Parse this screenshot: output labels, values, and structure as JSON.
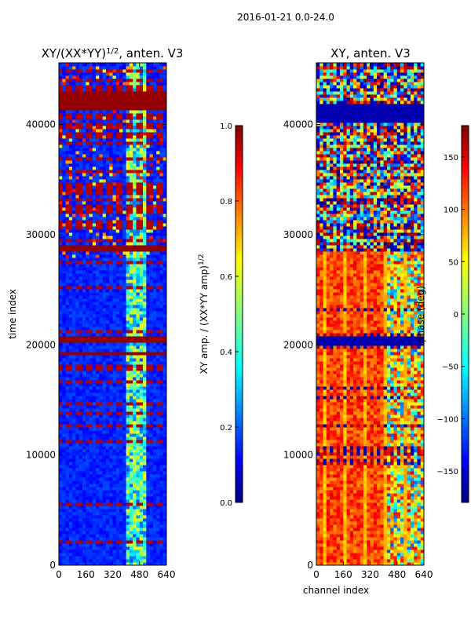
{
  "figure": {
    "suptitle": "2016-01-21 0.0-24.0"
  },
  "chart_data": [
    {
      "type": "heatmap",
      "title_main": "XY/(XX*YY)",
      "title_sup": "1/2",
      "title_tail": ", anten. V3",
      "xlabel": "",
      "ylabel": "time index",
      "x_ticks": [
        0,
        160,
        320,
        480,
        640
      ],
      "y_ticks": [
        0,
        10000,
        20000,
        30000,
        40000
      ],
      "xlim": [
        0,
        640
      ],
      "ylim": [
        0,
        45600
      ],
      "colormap": "jet",
      "colorbar": {
        "label_main": "XY amp. / (XX*YY amp)",
        "label_sup": "1/2",
        "ticks": [
          "0.0",
          "0.2",
          "0.4",
          "0.6",
          "0.8",
          "1.0"
        ],
        "range": [
          0.0,
          1.0
        ]
      }
    },
    {
      "type": "heatmap",
      "title": "XY, anten. V3",
      "xlabel": "channel index",
      "ylabel": "",
      "x_ticks": [
        0,
        160,
        320,
        480,
        640
      ],
      "y_ticks": [
        0,
        10000,
        20000,
        30000,
        40000
      ],
      "xlim": [
        0,
        640
      ],
      "ylim": [
        0,
        45600
      ],
      "colormap": "jet",
      "colorbar": {
        "label": "phase (deg)",
        "ticks": [
          "150",
          "100",
          "50",
          "0",
          "−50",
          "−100",
          "−150"
        ],
        "tick_values": [
          150,
          100,
          50,
          0,
          -50,
          -100,
          -150
        ],
        "range": [
          -180,
          180
        ]
      }
    }
  ],
  "colors": {
    "jet": [
      "#00007f",
      "#0000ff",
      "#007fff",
      "#00ffff",
      "#7fff7f",
      "#ffff00",
      "#ff7f00",
      "#ff0000",
      "#7f0000"
    ]
  }
}
